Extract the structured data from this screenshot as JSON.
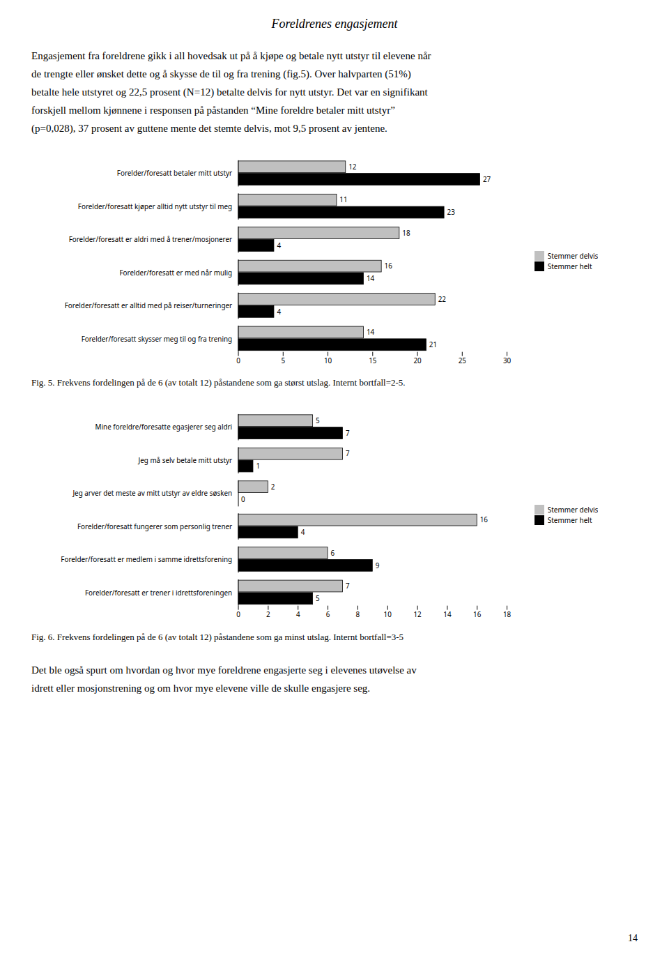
{
  "title": "Foreldrenes engasjement",
  "text": [
    "Engasjement fra foreldrene gikk i all hovedsak ut på å kjøpe og betale nytt utstyr til elevene når",
    "de trengte eller ønsket dette og å skysse de til og fra trening (fig.5). Over halvparten (51%)",
    "betalte hele utstyret og 22,5 prosent (N=12) betalte delvis for nytt utstyr. Det var en signifikant",
    "forskjell mellom kjønnene i responsen på påstanden “Mine foreldre betaler mitt utstyr”",
    "(p=0,028), 37 prosent av guttene mente det stemte delvis, mot 9,5 prosent av jentene."
  ],
  "chart_data": [
    {
      "type": "bar",
      "orientation": "horizontal",
      "categories": [
        "Forelder/foresatt betaler mitt utstyr",
        "Forelder/foresatt kjøper alltid nytt utstyr til meg",
        "Forelder/foresatt er aldri med å trener/mosjonerer",
        "Forelder/foresatt er med når mulig",
        "Forelder/foresatt er alltid med på reiser/turneringer",
        "Forelder/foresatt skysser meg til og fra trening"
      ],
      "series": [
        {
          "name": "Stemmer delvis",
          "color": "#c0c0c0",
          "values": [
            12,
            11,
            18,
            16,
            22,
            14
          ]
        },
        {
          "name": "Stemmer helt",
          "color": "#000000",
          "values": [
            27,
            23,
            4,
            14,
            4,
            21
          ]
        }
      ],
      "xlim": [
        0,
        30
      ],
      "xticks": [
        0,
        5,
        10,
        15,
        20,
        25,
        30
      ],
      "data_labels": true,
      "legend": "right",
      "grid": false,
      "annotations": [
        "Fig. 5. Frekvens fordelingen på de 6 (av totalt 12) påstandene som ga størst utslag. Internt bortfall=2-5."
      ]
    },
    {
      "type": "bar",
      "orientation": "horizontal",
      "categories": [
        "Mine foreldre/foresatte egasjerer seg aldri",
        "Jeg må selv betale mitt utstyr",
        "Jeg arver det meste av mitt utstyr av eldre søsken",
        "Forelder/foresatt fungerer som personlig trener",
        "Forelder/foresatt er medlem i samme idrettsforening",
        "Forelder/foresatt er trener i idrettsforeningen"
      ],
      "series": [
        {
          "name": "Stemmer delvis",
          "color": "#c0c0c0",
          "values": [
            5,
            7,
            2,
            16,
            6,
            7
          ]
        },
        {
          "name": "Stemmer helt",
          "color": "#000000",
          "values": [
            7,
            1,
            0,
            4,
            9,
            5
          ]
        }
      ],
      "xlim": [
        0,
        18
      ],
      "xticks": [
        0,
        2,
        4,
        6,
        8,
        10,
        12,
        14,
        16,
        18
      ],
      "data_labels": true,
      "legend": "right",
      "grid": false,
      "annotations": [
        "Fig. 6. Frekvens fordelingen på de 6 (av totalt 12) påstandene som ga minst utslag. Internt bortfall=3-5"
      ]
    }
  ],
  "text_after": [
    "Det ble også spurt om hvordan og hvor mye foreldrene engasjerte seg i elevenes utøvelse av",
    "idrett eller mosjonstrening og om hvor mye elevene ville de skulle engasjere seg."
  ],
  "page_number": "14"
}
